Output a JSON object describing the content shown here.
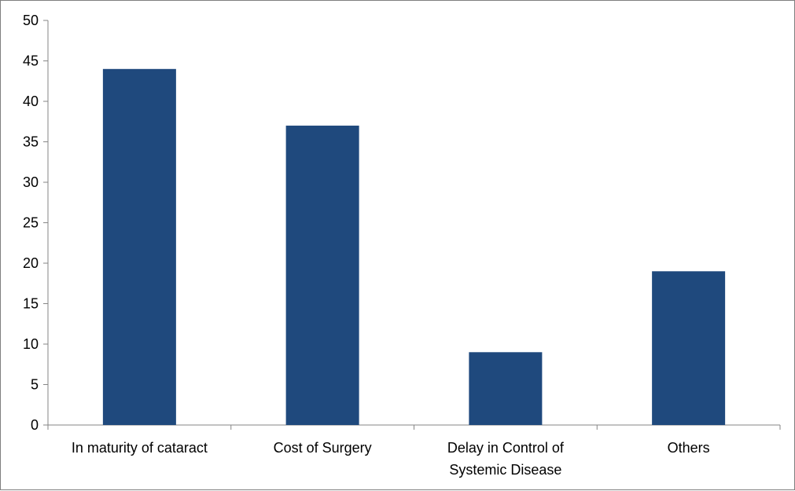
{
  "chart_data": {
    "type": "bar",
    "title": "",
    "xlabel": "",
    "ylabel": "",
    "categories": [
      [
        "In maturity of cataract"
      ],
      [
        "Cost of Surgery"
      ],
      [
        "Delay in Control of",
        "Systemic Disease"
      ],
      [
        "Others"
      ]
    ],
    "values": [
      44,
      37,
      9,
      19
    ],
    "ylim": [
      0,
      50
    ],
    "yticks": [
      0,
      5,
      10,
      15,
      20,
      25,
      30,
      35,
      40,
      45,
      50
    ],
    "grid": false,
    "legend": "none",
    "bar_color": "#1f497d",
    "axis_color": "#868686"
  }
}
